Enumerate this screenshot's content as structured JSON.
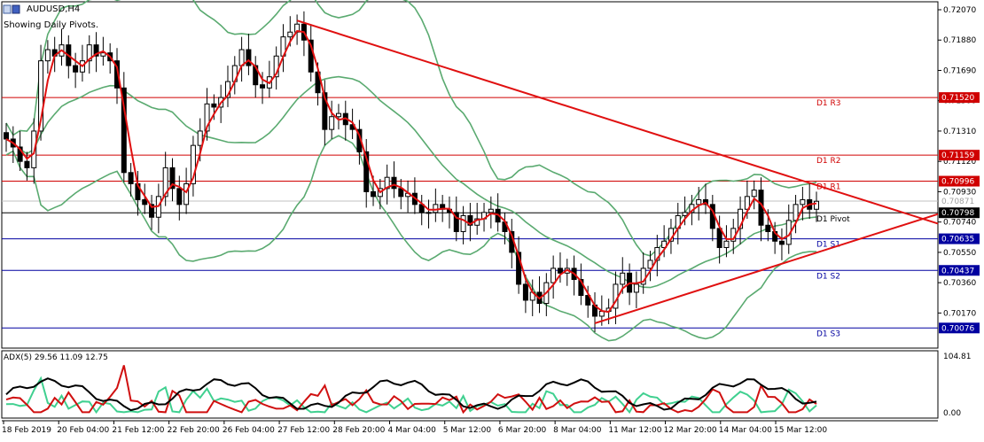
{
  "header": {
    "title": "AUDUSD,H4",
    "subtitle": "Showing Daily Pivots."
  },
  "chart_data": {
    "type": "candlestick",
    "symbol": "AUDUSD",
    "timeframe": "H4",
    "ylim": [
      0.6995,
      0.7212
    ],
    "price_ticks": [
      "0.72070",
      "0.71880",
      "0.71690",
      "0.71500",
      "0.71310",
      "0.71120",
      "0.70930",
      "0.70740",
      "0.70550",
      "0.70360",
      "0.70170"
    ],
    "x_labels": [
      "18 Feb 2019",
      "20 Feb 04:00",
      "21 Feb 12:00",
      "22 Feb 20:00",
      "26 Feb 04:00",
      "27 Feb 12:00",
      "28 Feb 20:00",
      "4 Mar 04:00",
      "5 Mar 12:00",
      "6 Mar 20:00",
      "8 Mar 04:00",
      "11 Mar 12:00",
      "12 Mar 20:00",
      "14 Mar 04:00",
      "15 Mar 12:00"
    ],
    "pivots": [
      {
        "label": "D1 R3",
        "value": 0.7152,
        "color": "#d00000"
      },
      {
        "label": "D1 R2",
        "value": 0.71159,
        "color": "#d00000"
      },
      {
        "label": "D1 R1",
        "value": 0.70996,
        "color": "#d00000"
      },
      {
        "label": "D1 Pivot",
        "value": 0.70798,
        "color": "#000000"
      },
      {
        "label": "D1 S1",
        "value": 0.70635,
        "color": "#0000a0"
      },
      {
        "label": "D1 S2",
        "value": 0.70437,
        "color": "#0000a0"
      },
      {
        "label": "D1 S3",
        "value": 0.70076,
        "color": "#0000a0"
      }
    ],
    "current_price": "0.70871",
    "closes": [
      0.7126,
      0.7121,
      0.7112,
      0.7108,
      0.7131,
      0.7175,
      0.7182,
      0.7178,
      0.7185,
      0.7172,
      0.7168,
      0.7175,
      0.7185,
      0.7178,
      0.718,
      0.7175,
      0.7158,
      0.7105,
      0.7098,
      0.7088,
      0.7085,
      0.7077,
      0.709,
      0.7108,
      0.7095,
      0.7085,
      0.7098,
      0.7122,
      0.7131,
      0.7148,
      0.7146,
      0.7152,
      0.7162,
      0.7172,
      0.7182,
      0.7172,
      0.716,
      0.7158,
      0.7165,
      0.7178,
      0.719,
      0.7193,
      0.7198,
      0.7188,
      0.7168,
      0.7155,
      0.7132,
      0.714,
      0.7142,
      0.7135,
      0.7132,
      0.7118,
      0.7093,
      0.709,
      0.7095,
      0.7102,
      0.7095,
      0.709,
      0.7092,
      0.7085,
      0.708,
      0.708,
      0.7085,
      0.7082,
      0.708,
      0.7068,
      0.7078,
      0.7072,
      0.7076,
      0.708,
      0.7082,
      0.7074,
      0.7068,
      0.7055,
      0.7035,
      0.7025,
      0.703,
      0.7023,
      0.7036,
      0.7045,
      0.7042,
      0.7045,
      0.7038,
      0.7028,
      0.7022,
      0.7015,
      0.7018,
      0.702,
      0.7035,
      0.7042,
      0.703,
      0.7035,
      0.7045,
      0.705,
      0.7058,
      0.7062,
      0.707,
      0.7078,
      0.708,
      0.7085,
      0.7088,
      0.7085,
      0.707,
      0.7058,
      0.7062,
      0.707,
      0.7082,
      0.709,
      0.7094,
      0.7072,
      0.7068,
      0.7062,
      0.706,
      0.7075,
      0.7085,
      0.7088,
      0.7082,
      0.7087
    ]
  },
  "indicator": {
    "label": "ADX(5) 29.56 11.09 12.75",
    "ymax_label": "104.81",
    "ymin_label": "0.00",
    "adx_color": "#000000",
    "plus_di_color": "#40d090",
    "minus_di_color": "#d01010"
  }
}
